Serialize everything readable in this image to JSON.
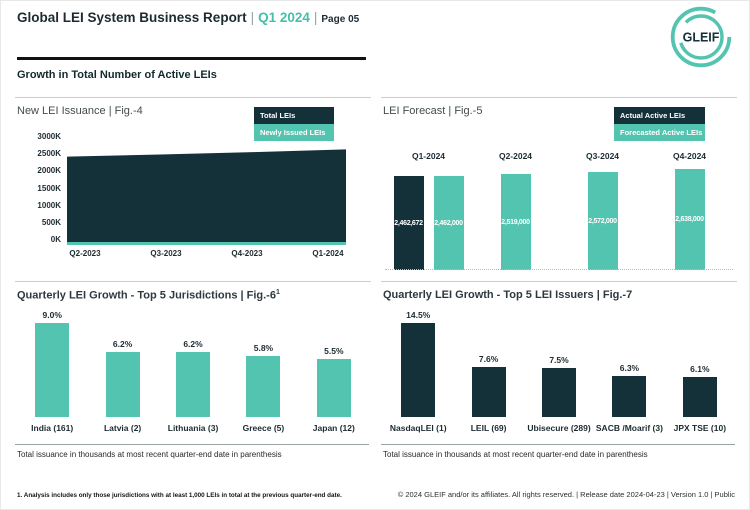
{
  "header": {
    "title": "Global LEI System Business Report",
    "sep": "|",
    "period": "Q1 2024",
    "page": "Page 05",
    "logo_text": "GLEIF"
  },
  "section_title": "Growth in Total Number of Active LEIs",
  "colors": {
    "teal": "#53C4AF",
    "dark": "#14313A",
    "header_accent_teal": "#45BFA9"
  },
  "chart_data": [
    {
      "id": "new-lei-issuance",
      "type": "area",
      "title": "New LEI Issuance | Fig.-4",
      "categories": [
        "Q2-2023",
        "Q3-2023",
        "Q4-2023",
        "Q1-2024"
      ],
      "series": [
        {
          "name": "Total LEIs",
          "color": "#14313A",
          "values": [
            2430000,
            2490000,
            2560000,
            2640000
          ]
        },
        {
          "name": "Newly Issued LEIs",
          "color": "#53C4AF",
          "values": [
            70000,
            65000,
            70000,
            75000
          ]
        }
      ],
      "values_estimated_from_gridlines": true,
      "ylim": [
        0,
        3000000
      ],
      "ytick_labels": [
        "3000K",
        "2500K",
        "2000K",
        "1500K",
        "1000K",
        "500K",
        "0K"
      ],
      "legend": [
        {
          "label": "Total LEIs",
          "color": "#14313A"
        },
        {
          "label": "Newly Issued LEIs",
          "color": "#53C4AF"
        }
      ],
      "legend_position": "top-right",
      "grid": false
    },
    {
      "id": "lei-forecast",
      "type": "bar",
      "title": "LEI Forecast | Fig.-5",
      "legend": [
        {
          "label": "Actual Active LEIs",
          "color": "#14313A"
        },
        {
          "label": "Forecasted Active LEIs",
          "color": "#53C4AF"
        }
      ],
      "legend_position": "top-right",
      "category_labels_position": "above-bars",
      "baseline_style": "dotted",
      "groups": [
        {
          "category": "Q1-2024",
          "bars": [
            {
              "series": "Actual Active LEIs",
              "value": 2462672,
              "label": "2,462,672",
              "color": "#14313A"
            },
            {
              "series": "Forecasted Active LEIs",
              "value": 2462000,
              "label": "2,462,000",
              "color": "#53C4AF"
            }
          ]
        },
        {
          "category": "Q2-2024",
          "bars": [
            {
              "series": "Forecasted Active LEIs",
              "value": 2519000,
              "label": "2,519,000",
              "color": "#53C4AF"
            }
          ]
        },
        {
          "category": "Q3-2024",
          "bars": [
            {
              "series": "Forecasted Active LEIs",
              "value": 2572000,
              "label": "2,572,000",
              "color": "#53C4AF"
            }
          ]
        },
        {
          "category": "Q4-2024",
          "bars": [
            {
              "series": "Forecasted Active LEIs",
              "value": 2638000,
              "label": "2,638,000",
              "color": "#53C4AF"
            }
          ]
        }
      ]
    },
    {
      "id": "top5-jurisdictions",
      "type": "bar",
      "title": "Quarterly LEI Growth - Top 5 Jurisdictions | Fig.-6",
      "title_superscript": "1",
      "bar_color": "#53C4AF",
      "value_unit": "%",
      "items": [
        {
          "label": "India (161)",
          "value": 9.0,
          "display": "9.0%"
        },
        {
          "label": "Latvia (2)",
          "value": 6.2,
          "display": "6.2%"
        },
        {
          "label": "Lithuania (3)",
          "value": 6.2,
          "display": "6.2%"
        },
        {
          "label": "Greece (5)",
          "value": 5.8,
          "display": "5.8%"
        },
        {
          "label": "Japan (12)",
          "value": 5.5,
          "display": "5.5%"
        }
      ],
      "note": "Total issuance in thousands at most recent quarter-end date in parenthesis"
    },
    {
      "id": "top5-lei-issuers",
      "type": "bar",
      "title": "Quarterly LEI Growth - Top 5 LEI Issuers | Fig.-7",
      "bar_color": "#14313A",
      "value_unit": "%",
      "items": [
        {
          "label": "NasdaqLEI (1)",
          "value": 14.5,
          "display": "14.5%"
        },
        {
          "label": "LEIL (69)",
          "value": 7.6,
          "display": "7.6%"
        },
        {
          "label": "Ubisecure (289)",
          "value": 7.5,
          "display": "7.5%"
        },
        {
          "label": "SACB /Moarif (3)",
          "value": 6.3,
          "display": "6.3%"
        },
        {
          "label": "JPX TSE (10)",
          "value": 6.1,
          "display": "6.1%"
        }
      ],
      "note": "Total issuance in thousands at most recent quarter-end date in parenthesis"
    }
  ],
  "footer": {
    "footnote": "1. Analysis includes only those jurisdictions with at least 1,000 LEIs in total at the previous quarter-end date.",
    "copyright": "© 2024 GLEIF and/or its affiliates. All rights reserved. | Release date 2024-04-23 | Version 1.0 | Public"
  }
}
